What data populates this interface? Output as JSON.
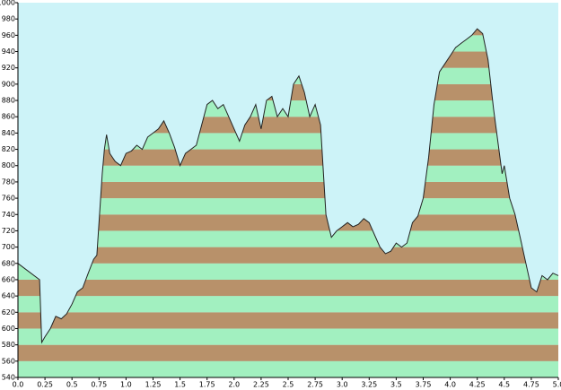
{
  "chart_data": {
    "type": "area",
    "x": [
      0,
      0.2,
      0.22,
      0.25,
      0.3,
      0.35,
      0.4,
      0.45,
      0.5,
      0.55,
      0.6,
      0.65,
      0.7,
      0.73,
      0.75,
      0.78,
      0.8,
      0.82,
      0.85,
      0.9,
      0.95,
      1.0,
      1.05,
      1.1,
      1.15,
      1.2,
      1.25,
      1.3,
      1.35,
      1.4,
      1.45,
      1.5,
      1.55,
      1.6,
      1.65,
      1.7,
      1.75,
      1.8,
      1.85,
      1.9,
      1.95,
      2.0,
      2.05,
      2.1,
      2.15,
      2.2,
      2.25,
      2.3,
      2.35,
      2.4,
      2.45,
      2.5,
      2.55,
      2.6,
      2.65,
      2.7,
      2.75,
      2.8,
      2.85,
      2.9,
      2.95,
      3.0,
      3.05,
      3.1,
      3.15,
      3.2,
      3.25,
      3.3,
      3.35,
      3.4,
      3.45,
      3.5,
      3.55,
      3.6,
      3.65,
      3.7,
      3.75,
      3.8,
      3.85,
      3.9,
      3.95,
      4.0,
      4.05,
      4.1,
      4.15,
      4.2,
      4.25,
      4.3,
      4.35,
      4.4,
      4.45,
      4.48,
      4.5,
      4.55,
      4.6,
      4.65,
      4.7,
      4.75,
      4.8,
      4.85,
      4.9,
      4.95,
      5.0
    ],
    "values": [
      680,
      660,
      583,
      590,
      600,
      615,
      612,
      618,
      630,
      645,
      650,
      668,
      685,
      690,
      730,
      790,
      820,
      838,
      815,
      805,
      800,
      815,
      818,
      825,
      820,
      835,
      840,
      845,
      855,
      840,
      822,
      800,
      815,
      820,
      825,
      850,
      875,
      880,
      870,
      875,
      860,
      845,
      830,
      850,
      860,
      875,
      845,
      880,
      885,
      860,
      870,
      860,
      900,
      910,
      890,
      860,
      875,
      850,
      740,
      712,
      720,
      725,
      730,
      725,
      728,
      735,
      730,
      715,
      700,
      692,
      695,
      705,
      700,
      705,
      730,
      738,
      760,
      810,
      875,
      915,
      925,
      935,
      945,
      950,
      955,
      960,
      968,
      962,
      930,
      870,
      820,
      790,
      800,
      760,
      740,
      710,
      680,
      650,
      645,
      665,
      660,
      668,
      665
    ],
    "xlim": [
      0,
      5
    ],
    "ylim": [
      540,
      1000
    ],
    "xticks": [
      {
        "value": 0,
        "label": "0.0"
      },
      0.25,
      0.5,
      0.75,
      {
        "value": 1,
        "label": "1.0"
      },
      1.25,
      1.5,
      1.75,
      {
        "value": 2,
        "label": "2.0"
      },
      2.25,
      2.5,
      2.75,
      {
        "value": 3,
        "label": "3.0"
      },
      3.25,
      3.5,
      3.75,
      {
        "value": 4,
        "label": "4.0"
      },
      4.25,
      4.5,
      4.75,
      {
        "value": 5,
        "label": "5.0"
      }
    ],
    "yticks": [
      540,
      560,
      580,
      600,
      620,
      640,
      660,
      680,
      700,
      720,
      740,
      760,
      780,
      800,
      820,
      840,
      860,
      880,
      900,
      920,
      940,
      960,
      980,
      1000
    ],
    "band_colors": [
      "#a2f0c0",
      "#b8916a"
    ],
    "background": "#cdf3f8"
  }
}
